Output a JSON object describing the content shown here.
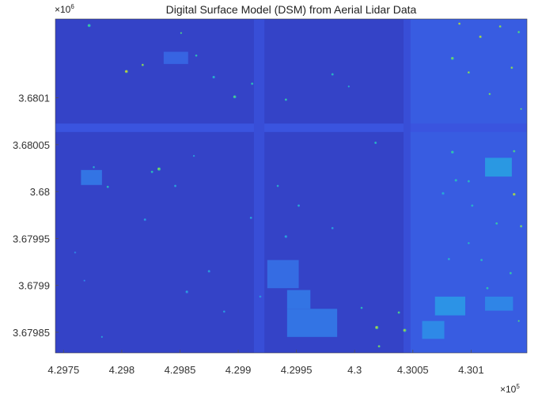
{
  "chart_data": {
    "type": "heatmap",
    "title": "Digital Surface Model (DSM) from Aerial Lidar Data",
    "xlabel": "",
    "ylabel": "",
    "x_exponent_label": "×10",
    "x_exponent_power": "5",
    "y_exponent_label": "×10",
    "y_exponent_power": "6",
    "xlim": [
      4.29743,
      4.30148
    ],
    "ylim": [
      3.679828,
      3.680184
    ],
    "x_ticks": [
      4.2975,
      4.298,
      4.2985,
      4.299,
      4.2995,
      4.3,
      4.3005,
      4.301
    ],
    "x_tick_labels": [
      "4.2975",
      "4.298",
      "4.2985",
      "4.299",
      "4.2995",
      "4.3",
      "4.3005",
      "4.301"
    ],
    "y_ticks": [
      3.6801,
      3.68005,
      3.68,
      3.67995,
      3.6799,
      3.67985
    ],
    "y_tick_labels": [
      "3.6801",
      "3.68005",
      "3.68",
      "3.67995",
      "3.6799",
      "3.67985"
    ],
    "colormap": [
      "#2c2ca8",
      "#3a55e0",
      "#2d8fe8",
      "#22b6d0",
      "#2fc9a0",
      "#7ed35a",
      "#d6c83a",
      "#f5b830"
    ],
    "grid": false,
    "features": {
      "roads": [
        {
          "orient": "h",
          "pos": 3.680068,
          "from": 4.29743,
          "to": 4.30148,
          "half_width": 4.5e-06
        },
        {
          "orient": "v",
          "pos": 4.29918,
          "from": 3.679828,
          "to": 3.680184,
          "half_width": 4.5e-05
        },
        {
          "orient": "v",
          "pos": 4.30045,
          "from": 3.679828,
          "to": 3.680184,
          "half_width": 3e-05
        }
      ],
      "buildings": [
        {
          "x": [
            4.29765,
            4.29783
          ],
          "y": [
            3.680007,
            3.680023
          ],
          "level": 0.22
        },
        {
          "x": [
            4.29836,
            4.29857
          ],
          "y": [
            3.680136,
            3.680149
          ],
          "level": 0.18
        },
        {
          "x": [
            4.29925,
            4.29952
          ],
          "y": [
            3.679897,
            3.679927
          ],
          "level": 0.2
        },
        {
          "x": [
            4.29942,
            4.29985
          ],
          "y": [
            3.679845,
            3.679875
          ],
          "level": 0.22
        },
        {
          "x": [
            4.29942,
            4.29962
          ],
          "y": [
            3.679875,
            3.679895
          ],
          "level": 0.22
        },
        {
          "x": [
            4.30058,
            4.30077
          ],
          "y": [
            3.679843,
            3.679862
          ],
          "level": 0.27
        },
        {
          "x": [
            4.30069,
            4.30095
          ],
          "y": [
            3.679868,
            3.679888
          ],
          "level": 0.3
        },
        {
          "x": [
            4.30112,
            4.30136
          ],
          "y": [
            3.679873,
            3.679888
          ],
          "level": 0.26
        },
        {
          "x": [
            4.30112,
            4.30135
          ],
          "y": [
            3.680016,
            3.680036
          ],
          "level": 0.32
        }
      ],
      "trees": [
        [
          4.29772,
          3.680177,
          1.3e-05,
          0.62
        ],
        [
          4.29804,
          3.680128,
          1.3e-05,
          0.88
        ],
        [
          4.29818,
          3.680135,
          1e-05,
          0.82
        ],
        [
          4.29851,
          3.680169,
          8e-06,
          0.7
        ],
        [
          4.29864,
          3.680145,
          9e-06,
          0.6
        ],
        [
          4.29879,
          3.680122,
          1.1e-05,
          0.52
        ],
        [
          4.29897,
          3.680101,
          1.3e-05,
          0.66
        ],
        [
          4.29912,
          3.680115,
          1e-05,
          0.58
        ],
        [
          4.29941,
          3.680098,
          1e-05,
          0.62
        ],
        [
          4.29981,
          3.680125,
          1e-05,
          0.55
        ],
        [
          4.29995,
          3.680112,
          8e-06,
          0.5
        ],
        [
          4.29832,
          3.680024,
          1.4e-05,
          0.75
        ],
        [
          4.29826,
          3.680021,
          1e-05,
          0.58
        ],
        [
          4.29846,
          3.680006,
          1e-05,
          0.45
        ],
        [
          4.29788,
          3.680005,
          1e-05,
          0.55
        ],
        [
          4.29776,
          3.680026,
          9e-06,
          0.5
        ],
        [
          4.2982,
          3.67997,
          1.1e-05,
          0.4
        ],
        [
          4.29862,
          3.680038,
          8e-06,
          0.45
        ],
        [
          4.29911,
          3.679972,
          1e-05,
          0.45
        ],
        [
          4.29934,
          3.680006,
          9e-06,
          0.5
        ],
        [
          4.29941,
          3.679952,
          1.2e-05,
          0.42
        ],
        [
          4.29952,
          3.679985,
          1e-05,
          0.47
        ],
        [
          4.29981,
          3.679961,
          1e-05,
          0.42
        ],
        [
          4.29856,
          3.679893,
          1.3e-05,
          0.38
        ],
        [
          4.29875,
          3.679915,
          1.1e-05,
          0.42
        ],
        [
          4.29888,
          3.679872,
          1e-05,
          0.4
        ],
        [
          4.29919,
          3.679888,
          1e-05,
          0.4
        ],
        [
          4.2976,
          3.679935,
          9e-06,
          0.35
        ],
        [
          4.29768,
          3.679905,
          9e-06,
          0.32
        ],
        [
          4.29783,
          3.679845,
          8e-06,
          0.45
        ],
        [
          4.30018,
          3.680052,
          1e-05,
          0.55
        ],
        [
          4.30019,
          3.679855,
          1.4e-05,
          0.82
        ],
        [
          4.30043,
          3.679852,
          1.4e-05,
          0.8
        ],
        [
          4.30038,
          3.679871,
          1e-05,
          0.7
        ],
        [
          4.30006,
          3.679876,
          9e-06,
          0.58
        ],
        [
          4.30021,
          3.679835,
          1e-05,
          0.78
        ],
        [
          4.30084,
          3.680042,
          1.2e-05,
          0.6
        ],
        [
          4.30087,
          3.680012,
          1.1e-05,
          0.56
        ],
        [
          4.30098,
          3.680011,
          1e-05,
          0.55
        ],
        [
          4.30076,
          3.679998,
          1.2e-05,
          0.45
        ],
        [
          4.30101,
          3.679985,
          1e-05,
          0.52
        ],
        [
          4.30122,
          3.679966,
          1e-05,
          0.62
        ],
        [
          4.30137,
          3.679997,
          1.2e-05,
          0.86
        ],
        [
          4.30137,
          3.680043,
          1e-05,
          0.7
        ],
        [
          4.30143,
          3.679963,
          1e-05,
          0.8
        ],
        [
          4.30109,
          3.679927,
          1e-05,
          0.55
        ],
        [
          4.30081,
          3.679928,
          1e-05,
          0.5
        ],
        [
          4.30098,
          3.679945,
          9e-06,
          0.52
        ],
        [
          4.30114,
          3.679897,
          1e-05,
          0.6
        ],
        [
          4.30134,
          3.679913,
          1e-05,
          0.62
        ],
        [
          4.30141,
          3.679862,
          8e-06,
          0.7
        ],
        [
          4.30084,
          3.680142,
          1.3e-05,
          0.75
        ],
        [
          4.3009,
          3.680179,
          1e-05,
          0.88
        ],
        [
          4.30108,
          3.680165,
          1.1e-05,
          0.86
        ],
        [
          4.30125,
          3.680176,
          1e-05,
          0.82
        ],
        [
          4.30141,
          3.68017,
          1e-05,
          0.7
        ],
        [
          4.30098,
          3.680127,
          1e-05,
          0.8
        ],
        [
          4.30135,
          3.680132,
          1e-05,
          0.82
        ],
        [
          4.30116,
          3.680104,
          9e-06,
          0.78
        ],
        [
          4.30143,
          3.680088,
          8e-06,
          0.75
        ]
      ]
    }
  }
}
